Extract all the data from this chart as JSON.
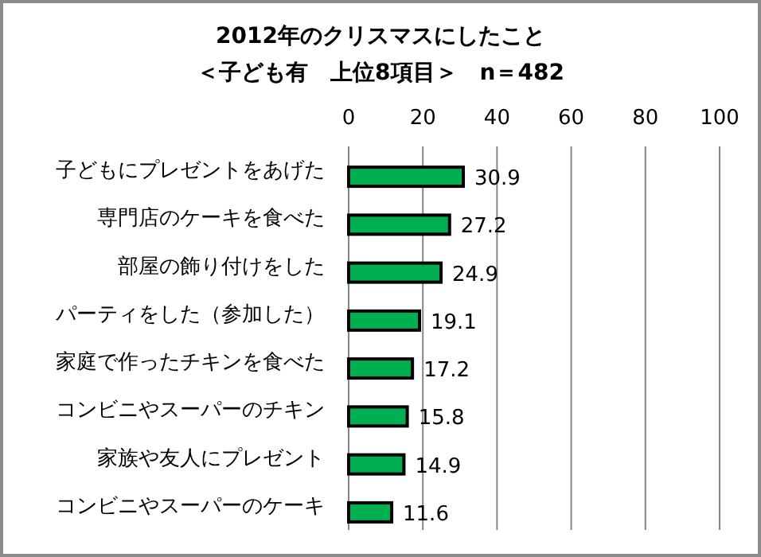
{
  "chart_data": {
    "type": "bar",
    "orientation": "horizontal",
    "title": "2012年のクリスマスにしたこと",
    "subtitle": "＜子ども有　上位8項目＞　n＝482",
    "categories": [
      "子どもにプレゼントをあげた",
      "専門店のケーキを食べた",
      "部屋の飾り付けをした",
      "パーティをした（参加した）",
      "家庭で作ったチキンを食べた",
      "コンビニやスーパーのチキン",
      "家族や友人にプレゼント",
      "コンビニやスーパーのケーキ"
    ],
    "values": [
      30.9,
      27.2,
      24.9,
      19.1,
      17.2,
      15.8,
      14.9,
      11.6
    ],
    "color": "#00b050",
    "xlim": [
      0,
      100
    ],
    "xticks": [
      0,
      20,
      40,
      60,
      80,
      100
    ],
    "grid": "x",
    "data_labels": true
  }
}
